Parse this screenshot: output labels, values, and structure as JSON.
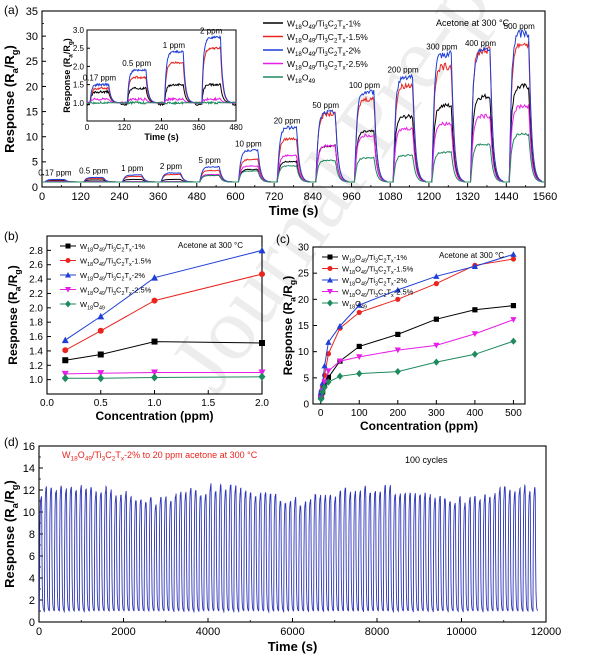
{
  "watermark": "Journal Pre-proof",
  "colors": {
    "s1": "#000000",
    "s2": "#e8251f",
    "s3": "#1f3fd6",
    "s4": "#e61ee6",
    "s5": "#1e8a5e",
    "d": "#2d35b8"
  },
  "chart_data": [
    {
      "id": "a",
      "type": "line",
      "panel_label": "(a)",
      "xlabel": "Time (s)",
      "ylabel": "Response (R_a/R_g)",
      "xlim": [
        0,
        1560
      ],
      "ylim": [
        0,
        35
      ],
      "xticks": [
        0,
        120,
        240,
        360,
        480,
        600,
        720,
        840,
        960,
        1080,
        1200,
        1320,
        1440,
        1560
      ],
      "yticks": [
        0,
        5,
        10,
        15,
        20,
        25,
        30,
        35
      ],
      "annotation": "Acetone at 300 °C",
      "concentrations": [
        "0.17 ppm",
        "0.5 ppm",
        "1 ppm",
        "2 ppm",
        "5 ppm",
        "10 ppm",
        "20 ppm",
        "50 ppm",
        "100 ppm",
        "200 ppm",
        "300 ppm",
        "400 ppm",
        "500 ppm"
      ],
      "pulse_starts": [
        10,
        130,
        250,
        370,
        490,
        610,
        730,
        850,
        970,
        1090,
        1210,
        1330,
        1450
      ],
      "pulse_width": 60,
      "legend_position": "top-right",
      "series": [
        {
          "name": "W18O49/Ti3C2Tx-1%",
          "color": "s1",
          "peaks": [
            1.3,
            1.4,
            1.5,
            1.5,
            2.3,
            3.5,
            5.1,
            8.2,
            11,
            14,
            16.2,
            18,
            20
          ]
        },
        {
          "name": "W18O49/Ti3C2Tx-1.5%",
          "color": "s2",
          "peaks": [
            1.4,
            1.7,
            2.1,
            2.5,
            3.3,
            5.5,
            9.6,
            14.5,
            17.5,
            20.2,
            24,
            27.2,
            28.5
          ]
        },
        {
          "name": "W18O49/Ti3C2Tx-2%",
          "color": "s3",
          "peaks": [
            1.5,
            1.9,
            2.4,
            2.8,
            4,
            7.3,
            11.8,
            14.9,
            18.9,
            22,
            26.5,
            27.2,
            30.6
          ]
        },
        {
          "name": "W18O49/Ti3C2Tx-2.5%",
          "color": "s4",
          "peaks": [
            1.1,
            1.1,
            1.1,
            1.1,
            2.5,
            4.2,
            6.3,
            8.2,
            10.3,
            11.6,
            12.6,
            14.1,
            16.1
          ]
        },
        {
          "name": "W18O49",
          "color": "s5",
          "peaks": [
            1.0,
            1.0,
            1.0,
            1.0,
            2.3,
            3.2,
            4.2,
            5.3,
            5.8,
            6.3,
            6.9,
            8.5,
            10.5
          ]
        }
      ],
      "inset": {
        "xlabel": "Time (s)",
        "ylabel": "Response (R_a/R_g)",
        "xlim": [
          0,
          480
        ],
        "ylim": [
          0.5,
          3.0
        ],
        "xticks": [
          0,
          120,
          240,
          360,
          480
        ],
        "yticks": [
          1.0,
          1.5,
          2.0,
          2.5,
          3.0
        ],
        "labels": [
          "0.17 ppm",
          "0.5 ppm",
          "1 ppm",
          "2 ppm"
        ]
      }
    },
    {
      "id": "b",
      "type": "line",
      "panel_label": "(b)",
      "xlabel": "Concentration (ppm)",
      "ylabel": "Response (R_a/R_g)",
      "xlim": [
        0,
        2.0
      ],
      "ylim": [
        0.8,
        3.0
      ],
      "xticks": [
        0.0,
        0.5,
        1.0,
        1.5,
        2.0
      ],
      "yticks": [
        1.0,
        1.2,
        1.4,
        1.6,
        1.8,
        2.0,
        2.2,
        2.4,
        2.6,
        2.8
      ],
      "annotation": "Acetone at 300 °C",
      "legend_position": "top-left",
      "x": [
        0.17,
        0.5,
        1.0,
        2.0
      ],
      "series": [
        {
          "name": "W18O49/Ti3C2Tx-1%",
          "color": "s1",
          "marker": "square",
          "values": [
            1.27,
            1.35,
            1.53,
            1.51
          ]
        },
        {
          "name": "W18O49/Ti3C2Tx-1.5%",
          "color": "s2",
          "marker": "circle",
          "values": [
            1.41,
            1.68,
            2.1,
            2.47
          ]
        },
        {
          "name": "W18O49/Ti3C2Tx-2%",
          "color": "s3",
          "marker": "triangle",
          "values": [
            1.55,
            1.88,
            2.42,
            2.8
          ]
        },
        {
          "name": "W18O49/Ti3C2Tx-2.5%",
          "color": "s4",
          "marker": "triangle-down",
          "values": [
            1.08,
            1.09,
            1.1,
            1.1
          ]
        },
        {
          "name": "W18O49",
          "color": "s5",
          "marker": "diamond",
          "values": [
            1.02,
            1.02,
            1.03,
            1.04
          ]
        }
      ]
    },
    {
      "id": "c",
      "type": "line",
      "panel_label": "(c)",
      "xlabel": "Concentration (ppm)",
      "ylabel": "Response (R_a/R_g)",
      "xlim": [
        -20,
        530
      ],
      "ylim": [
        0,
        30
      ],
      "xticks": [
        0,
        100,
        200,
        300,
        400,
        500
      ],
      "yticks": [
        0,
        5,
        10,
        15,
        20,
        25,
        30
      ],
      "annotation": "Acetone at 300 °C",
      "legend_position": "top-left",
      "x": [
        0.17,
        0.5,
        1,
        2,
        5,
        10,
        20,
        50,
        100,
        200,
        300,
        400,
        500
      ],
      "series": [
        {
          "name": "W18O49/Ti3C2Tx-1%",
          "color": "s1",
          "marker": "square",
          "values": [
            1.3,
            1.4,
            1.5,
            1.5,
            2.3,
            3.5,
            5.1,
            8.2,
            11,
            13.3,
            16.2,
            18,
            18.8
          ]
        },
        {
          "name": "W18O49/Ti3C2Tx-1.5%",
          "color": "s2",
          "marker": "circle",
          "values": [
            1.4,
            1.7,
            2.1,
            2.5,
            3.3,
            5.5,
            9.6,
            14.5,
            17.5,
            20,
            23,
            26.5,
            27.7
          ]
        },
        {
          "name": "W18O49/Ti3C2Tx-2%",
          "color": "s3",
          "marker": "triangle",
          "values": [
            1.5,
            1.9,
            2.4,
            2.8,
            4,
            7.3,
            11.8,
            14.9,
            18.9,
            21.8,
            24.4,
            26.3,
            28.6
          ]
        },
        {
          "name": "W18O49/Ti3C2Tx-2.5%",
          "color": "s4",
          "marker": "triangle-down",
          "values": [
            1.1,
            1.1,
            1.1,
            1.1,
            2.5,
            4.2,
            6.3,
            8.2,
            9.0,
            10.3,
            11.2,
            13.4,
            16.1
          ]
        },
        {
          "name": "W18O49",
          "color": "s5",
          "marker": "diamond",
          "values": [
            1,
            1,
            1,
            1,
            2.3,
            3.2,
            4.2,
            5.3,
            5.8,
            6.2,
            8.0,
            9.5,
            12.0
          ]
        }
      ]
    },
    {
      "id": "d",
      "type": "line",
      "panel_label": "(d)",
      "xlabel": "Time (s)",
      "ylabel": "Response (R_a/R_g)",
      "xlim": [
        0,
        12000
      ],
      "ylim": [
        0,
        16
      ],
      "xticks": [
        0,
        2000,
        4000,
        6000,
        8000,
        10000,
        12000
      ],
      "yticks": [
        0,
        2,
        4,
        6,
        8,
        10,
        12,
        14,
        16
      ],
      "annotation": "W18O49/Ti3C2Tx-2% to 20 ppm acetone at 300 °C",
      "cycles_label": "100 cycles",
      "cycles": 100,
      "period_s": 118,
      "baseline": 1.0,
      "peak_mean": 11.7,
      "peak_range": [
        10.5,
        13.1
      ],
      "series": [
        {
          "name": "W18O49/Ti3C2Tx-2%",
          "color": "d"
        }
      ]
    }
  ]
}
